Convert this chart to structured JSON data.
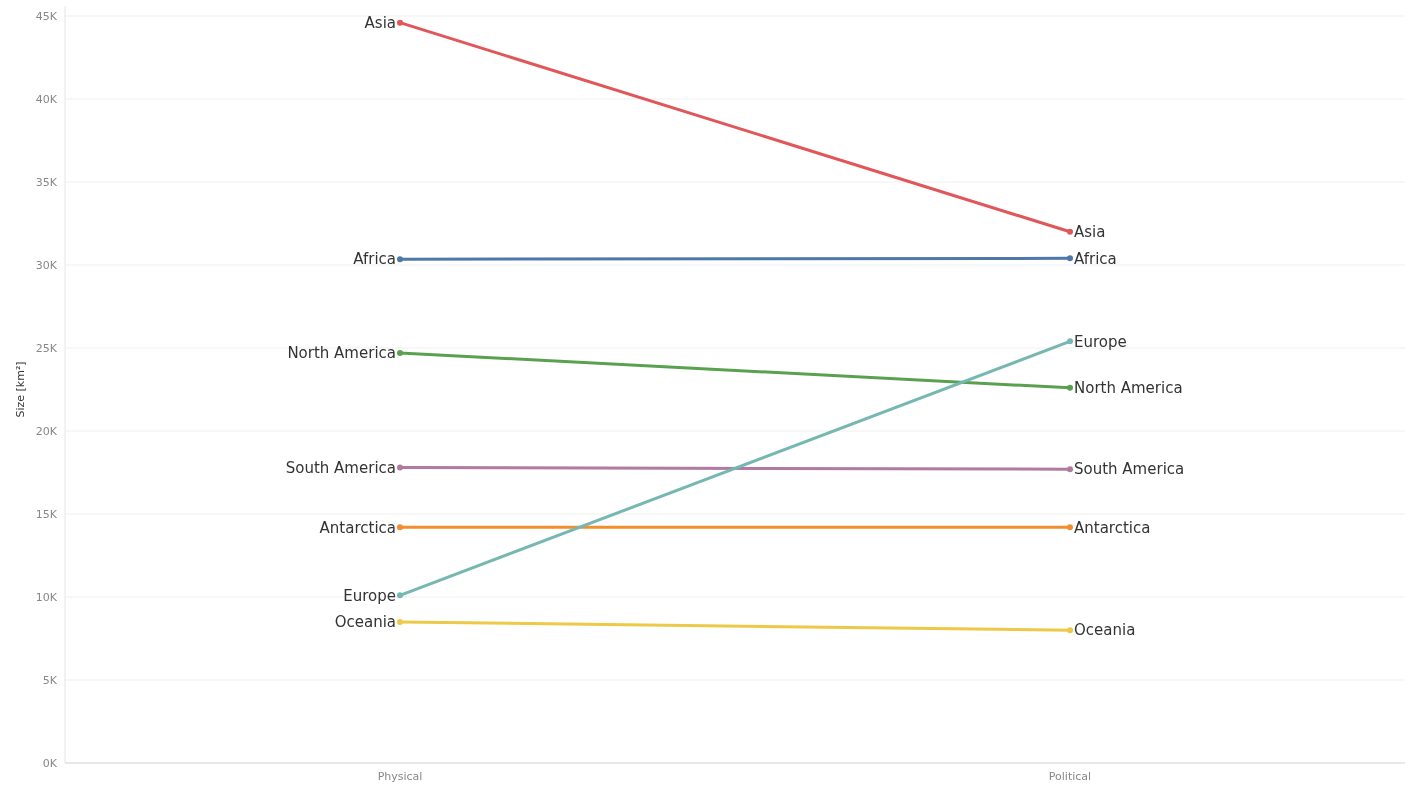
{
  "chart_data": {
    "type": "line",
    "ylabel": "Size [km²]",
    "categories": [
      "Physical",
      "Political"
    ],
    "series": [
      {
        "name": "Asia",
        "color": "#e15759",
        "values": [
          44600,
          32000
        ]
      },
      {
        "name": "Africa",
        "color": "#4e79a7",
        "values": [
          30350,
          30400
        ]
      },
      {
        "name": "North America",
        "color": "#59a14f",
        "values": [
          24700,
          22600
        ]
      },
      {
        "name": "South America",
        "color": "#b07aa1",
        "values": [
          17800,
          17700
        ]
      },
      {
        "name": "Antarctica",
        "color": "#f28e2b",
        "values": [
          14200,
          14200
        ]
      },
      {
        "name": "Europe",
        "color": "#76b7b2",
        "values": [
          10100,
          25400
        ]
      },
      {
        "name": "Oceania",
        "color": "#edc948",
        "values": [
          8500,
          8000
        ]
      }
    ],
    "ylim": [
      0,
      45000
    ],
    "yticks": [
      {
        "value": 0,
        "label": "0K"
      },
      {
        "value": 5000,
        "label": "5K"
      },
      {
        "value": 10000,
        "label": "10K"
      },
      {
        "value": 15000,
        "label": "15K"
      },
      {
        "value": 20000,
        "label": "20K"
      },
      {
        "value": 25000,
        "label": "25K"
      },
      {
        "value": 30000,
        "label": "30K"
      },
      {
        "value": 35000,
        "label": "35K"
      },
      {
        "value": 40000,
        "label": "40K"
      },
      {
        "value": 45000,
        "label": "45K"
      }
    ],
    "grid": "y",
    "marker": "circle",
    "line_style": "solid"
  }
}
